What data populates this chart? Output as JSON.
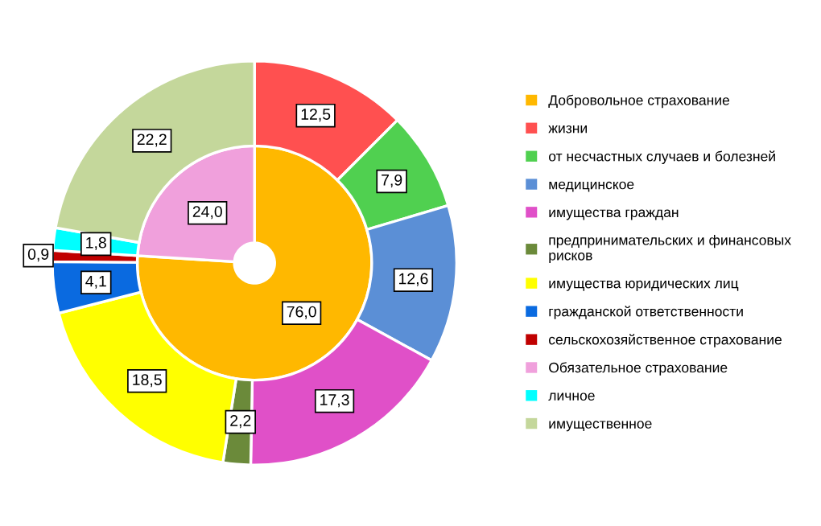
{
  "chart_data": {
    "type": "donut",
    "categories": [
      "Добровольное страхование",
      "жизни",
      "от несчастных случаев и болезней",
      "медицинское",
      "имущества граждан",
      "предпринимательских и финансовых\nрисков",
      "имущества юридических лиц",
      "гражданской ответственности",
      "сельскохозяйственное страхование",
      "Обязательное страхование",
      "личное",
      "имущественное"
    ],
    "colors": [
      "#ffb800",
      "#ff5050",
      "#50d050",
      "#5b8fd6",
      "#e050c8",
      "#6b8a3a",
      "#ffff00",
      "#0a6ae0",
      "#c00000",
      "#f0a0dc",
      "#00ffff",
      "#c4d79b"
    ],
    "series": [
      {
        "values": [
          76.0,
          null,
          null,
          null,
          null,
          null,
          null,
          null,
          null,
          24.0,
          null,
          null
        ],
        "value_labels": [
          "76,0",
          null,
          null,
          null,
          null,
          null,
          null,
          null,
          null,
          "24,0",
          null,
          null
        ]
      },
      {
        "values": [
          null,
          12.5,
          7.9,
          12.6,
          17.3,
          2.2,
          18.5,
          4.1,
          0.9,
          null,
          1.8,
          22.2
        ],
        "value_labels": [
          null,
          "12,5",
          "7,9",
          "12,6",
          "17,3",
          "2,2",
          "18,5",
          "4,1",
          "0,9",
          null,
          "1,8",
          "22,2"
        ]
      }
    ],
    "legend": "right"
  }
}
